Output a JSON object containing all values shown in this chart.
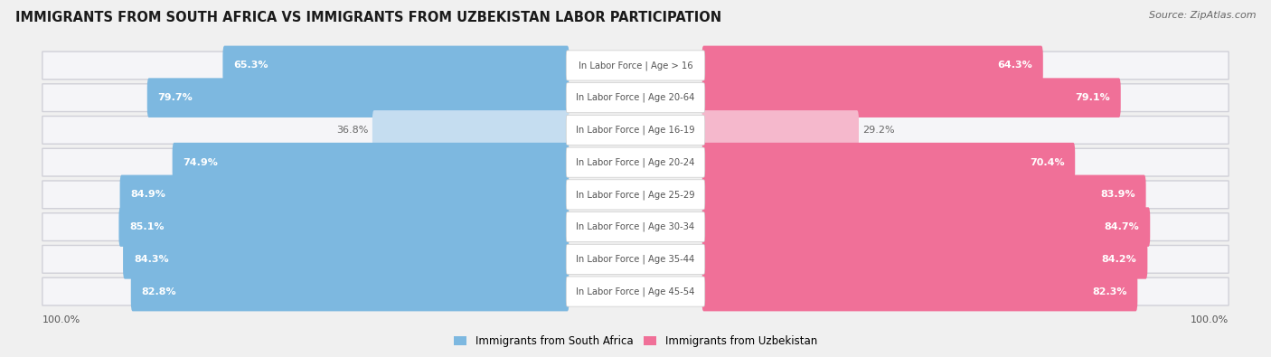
{
  "title": "IMMIGRANTS FROM SOUTH AFRICA VS IMMIGRANTS FROM UZBEKISTAN LABOR PARTICIPATION",
  "source": "Source: ZipAtlas.com",
  "categories": [
    "In Labor Force | Age > 16",
    "In Labor Force | Age 20-64",
    "In Labor Force | Age 16-19",
    "In Labor Force | Age 20-24",
    "In Labor Force | Age 25-29",
    "In Labor Force | Age 30-34",
    "In Labor Force | Age 35-44",
    "In Labor Force | Age 45-54"
  ],
  "south_africa_values": [
    65.3,
    79.7,
    36.8,
    74.9,
    84.9,
    85.1,
    84.3,
    82.8
  ],
  "uzbekistan_values": [
    64.3,
    79.1,
    29.2,
    70.4,
    83.9,
    84.7,
    84.2,
    82.3
  ],
  "south_africa_color": "#7db8e0",
  "south_africa_light_color": "#c5ddf0",
  "uzbekistan_color": "#f07098",
  "uzbekistan_light_color": "#f5b8cc",
  "row_bg_color": "#e8e8ec",
  "row_fill_color": "#f5f5f8",
  "background_color": "#f0f0f0",
  "legend_sa": "Immigrants from South Africa",
  "legend_uz": "Immigrants from Uzbekistan",
  "center_label_color": "#555555",
  "value_color_inside": "white",
  "value_color_outside": "#666666",
  "axis_label_left": "100.0%",
  "axis_label_right": "100.0%"
}
